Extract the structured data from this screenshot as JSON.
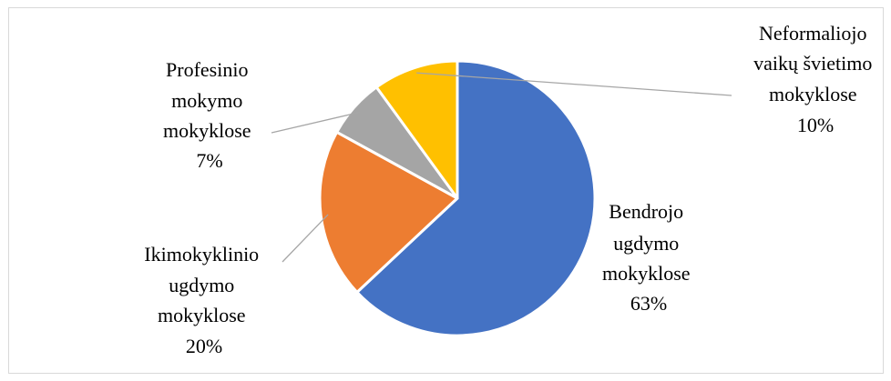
{
  "chart_data": {
    "type": "pie",
    "title": "",
    "slices": [
      {
        "label_lines": [
          "Bendrojo",
          "ugdymo",
          "mokyklose"
        ],
        "pct_label": "63%",
        "value": 63,
        "color": "#4472c4"
      },
      {
        "label_lines": [
          "Ikimokyklinio",
          "ugdymo",
          "mokyklose"
        ],
        "pct_label": "20%",
        "value": 20,
        "color": "#ed7d31"
      },
      {
        "label_lines": [
          "Profesinio",
          "mokymo",
          "mokyklose"
        ],
        "pct_label": "7%",
        "value": 7,
        "color": "#a5a5a5"
      },
      {
        "label_lines": [
          "Neformaliojo",
          "vaikų švietimo",
          "mokyklose"
        ],
        "pct_label": "10%",
        "value": 10,
        "color": "#ffc000"
      }
    ]
  }
}
